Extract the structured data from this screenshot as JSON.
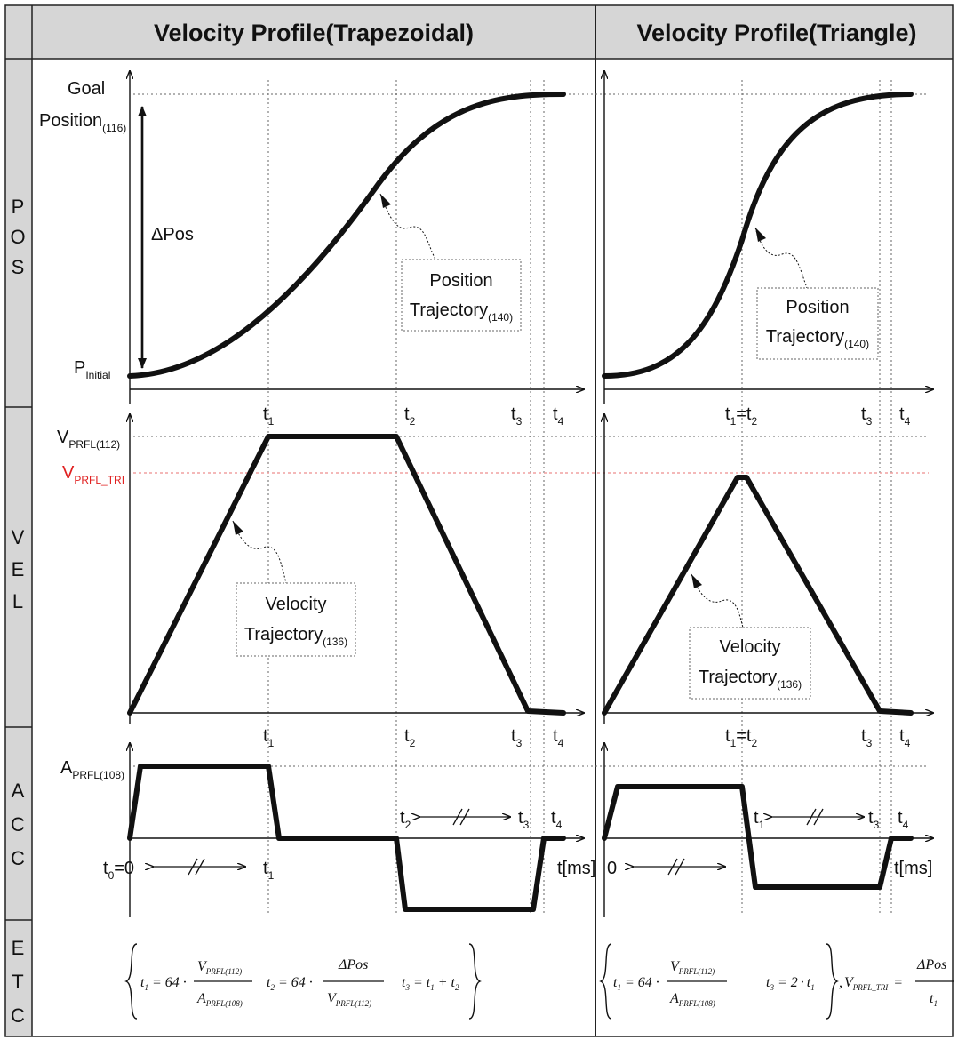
{
  "headers": {
    "trapezoidal": "Velocity Profile(Trapezoidal)",
    "triangle": "Velocity Profile(Triangle)"
  },
  "rows": {
    "pos": [
      "P",
      "O",
      "S"
    ],
    "vel": [
      "V",
      "E",
      "L"
    ],
    "acc": [
      "A",
      "C",
      "C"
    ],
    "etc": [
      "E",
      "T",
      "C"
    ]
  },
  "pos_panel": {
    "goal_line1": "Goal",
    "goal_line2": "Position",
    "goal_sub": "(116)",
    "delta_pos": "ΔPos",
    "p_initial": "P",
    "p_initial_sub": "Initial",
    "annotation_trap_line1": "Position",
    "annotation_trap_line2": "Trajectory",
    "annotation_trap_sub": "(140)",
    "annotation_tri_line1": "Position",
    "annotation_tri_line2": "Trajectory",
    "annotation_tri_sub": "(140)"
  },
  "vel_panel": {
    "v_prfl": "V",
    "v_prfl_sub": "PRFL(112)",
    "v_tri": "V",
    "v_tri_sub": "PRFL_TRI",
    "v_tri_color": "#e02020",
    "annotation_trap_line1": "Velocity",
    "annotation_trap_line2": "Trajectory",
    "annotation_trap_sub": "(136)",
    "annotation_tri_line1": "Velocity",
    "annotation_tri_line2": "Trajectory",
    "annotation_tri_sub": "(136)"
  },
  "acc_panel": {
    "a_prfl": "A",
    "a_prfl_sub": "PRFL(108)",
    "t0_trap": "t",
    "t0_trap_sub": "0",
    "t0_trap_suffix": "=0",
    "t0_tri": "0",
    "unit": "t[ms]"
  },
  "time_labels": {
    "t1": "t",
    "t1_sub": "1",
    "t2": "t",
    "t2_sub": "2",
    "t3": "t",
    "t3_sub": "3",
    "t4": "t",
    "t4_sub": "4",
    "t1_eq_t2": "=t"
  },
  "equations": {
    "t1_lhs": "t",
    "t1_lhs_sub": "1",
    "eq": "=",
    "const64": "64",
    "dot": "·",
    "v_num": "V",
    "v_num_sub": "PRFL(112)",
    "a_den": "A",
    "a_den_sub": "PRFL(108)",
    "t2_lhs": "t",
    "t2_lhs_sub": "2",
    "dpos_num": "ΔPos",
    "v_den": "V",
    "v_den_sub": "PRFL(112)",
    "t3_lhs": "t",
    "t3_lhs_sub": "3",
    "t3_rhs_a": "t",
    "t3_rhs_a_sub": "1",
    "plus": "+",
    "t3_rhs_b": "t",
    "t3_rhs_b_sub": "2",
    "tri_t3_lhs": "t",
    "tri_t3_lhs_sub": "3",
    "tri_two": "2",
    "tri_t1": "t",
    "tri_t1_sub": "1",
    "tri_vtri": "V",
    "tri_vtri_sub": "PRFL_TRI",
    "tri_dpos": "ΔPos",
    "tri_den": "t",
    "tri_den_sub": "1"
  }
}
